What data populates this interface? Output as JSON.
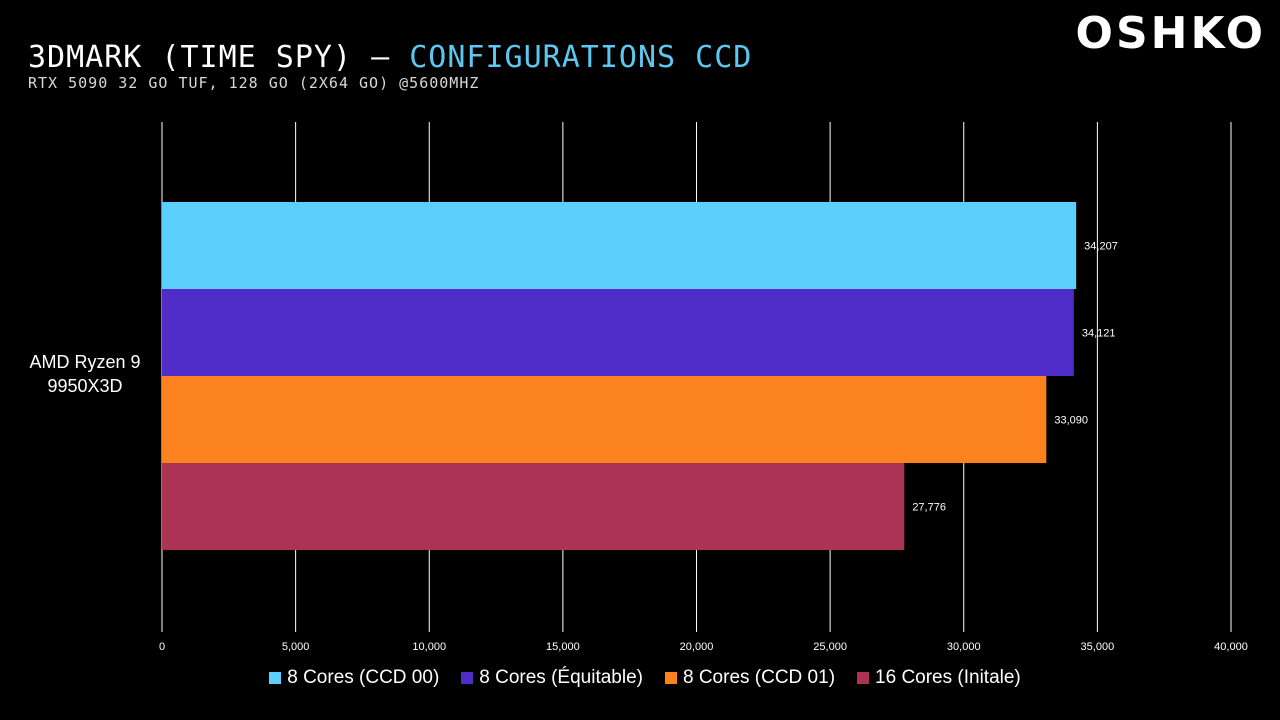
{
  "header": {
    "title_main": "3DMARK (TIME SPY) – ",
    "title_accent": "CONFIGURATIONS CCD",
    "subtitle": "RTX 5090 32 GO TUF, 128 GO (2X64 GO) @5600MHZ",
    "logo_text": "OSHKO"
  },
  "colors": {
    "accent": "#5cc8ef",
    "background": "#000000",
    "gridline": "#ffffff"
  },
  "chart_data": {
    "type": "bar",
    "orientation": "horizontal",
    "title": "3DMARK (TIME SPY) – CONFIGURATIONS CCD",
    "subtitle": "RTX 5090 32 GO TUF, 128 GO (2X64 GO) @5600MHZ",
    "categories": [
      "AMD Ryzen 9 9950X3D"
    ],
    "category_lines": [
      "AMD Ryzen 9",
      "9950X3D"
    ],
    "series": [
      {
        "name": "8 Cores (CCD 00)",
        "color": "#5bd0fd",
        "values": [
          34207
        ],
        "label": "34,207"
      },
      {
        "name": "8 Cores (Équitable)",
        "color": "#4f2bc8",
        "values": [
          34121
        ],
        "label": "34,121"
      },
      {
        "name": "8 Cores (CCD 01)",
        "color": "#fb821e",
        "values": [
          33090
        ],
        "label": "33,090"
      },
      {
        "name": "16 Cores (Initale)",
        "color": "#ab3455",
        "values": [
          27776
        ],
        "label": "27,776"
      }
    ],
    "xlim": [
      0,
      40000
    ],
    "xticks": [
      0,
      5000,
      10000,
      15000,
      20000,
      25000,
      30000,
      35000,
      40000
    ],
    "xtick_labels": [
      "0",
      "5,000",
      "10,000",
      "15,000",
      "20,000",
      "25,000",
      "30,000",
      "35,000",
      "40,000"
    ],
    "grid": true,
    "legend_position": "bottom"
  }
}
